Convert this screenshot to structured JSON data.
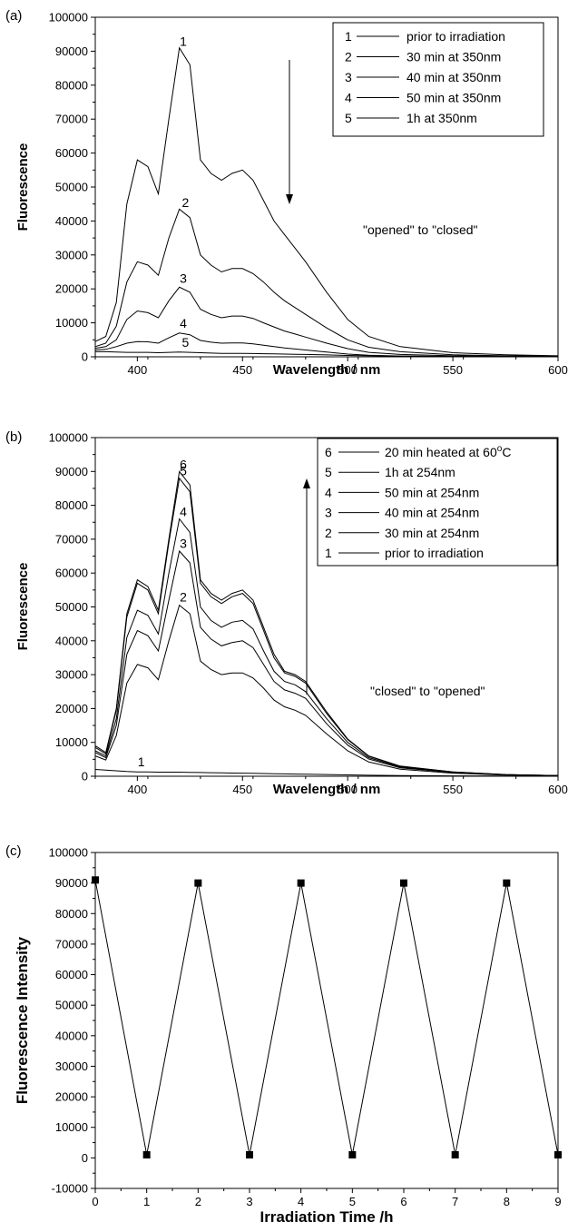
{
  "chart_data": [
    {
      "panel_label": "(a)",
      "type": "line",
      "xlabel": "Wavelength / nm",
      "ylabel": "Fluorescence",
      "xlim": [
        380,
        600
      ],
      "ylim": [
        0,
        100000
      ],
      "xticks": [
        400,
        450,
        500,
        550,
        600
      ],
      "yticks": [
        0,
        10000,
        20000,
        30000,
        40000,
        50000,
        60000,
        70000,
        80000,
        90000,
        100000
      ],
      "legend": {
        "position": "top-right"
      },
      "annotation": "\"opened\" to \"closed\"",
      "arrow": "down",
      "x": [
        380,
        385,
        390,
        395,
        400,
        405,
        410,
        415,
        420,
        425,
        430,
        435,
        440,
        445,
        450,
        455,
        460,
        465,
        470,
        475,
        480,
        490,
        500,
        510,
        525,
        550,
        575,
        600
      ],
      "series": [
        {
          "name": "prior to irradiation",
          "curve_label": "1",
          "label_x": 421,
          "values": [
            4500,
            6000,
            16000,
            45000,
            58000,
            56000,
            48000,
            70000,
            91000,
            86000,
            58000,
            54000,
            52000,
            54000,
            55000,
            52000,
            46000,
            40000,
            36000,
            32000,
            28000,
            19000,
            11000,
            6000,
            3000,
            1200,
            600,
            300
          ]
        },
        {
          "name": "30 min at 350nm",
          "curve_label": "2",
          "label_x": 422,
          "values": [
            3000,
            4000,
            9000,
            22000,
            28000,
            27000,
            24000,
            35000,
            43500,
            41000,
            30000,
            27000,
            25000,
            26000,
            26000,
            24500,
            22000,
            19000,
            16500,
            14500,
            12500,
            8500,
            5000,
            2800,
            1500,
            600,
            300,
            150
          ]
        },
        {
          "name": "40 min at 350nm",
          "curve_label": "3",
          "label_x": 421,
          "values": [
            2500,
            3000,
            5000,
            11000,
            13500,
            13000,
            11500,
            16500,
            20500,
            19000,
            14000,
            12500,
            11500,
            12000,
            12000,
            11300,
            10000,
            8800,
            7600,
            6700,
            5800,
            4000,
            2400,
            1300,
            700,
            300,
            150,
            80
          ]
        },
        {
          "name": "50 min at 350nm",
          "curve_label": "4",
          "label_x": 421,
          "values": [
            2000,
            2200,
            3000,
            4000,
            4500,
            4400,
            4000,
            5600,
            7000,
            6500,
            4800,
            4300,
            4000,
            4100,
            4100,
            3800,
            3400,
            3000,
            2600,
            2300,
            2000,
            1400,
            800,
            450,
            250,
            100,
            50,
            25
          ]
        },
        {
          "name": "1h at 350nm",
          "curve_label": "5",
          "label_x": 422,
          "values": [
            1500,
            1500,
            1400,
            1300,
            1300,
            1300,
            1200,
            1300,
            1400,
            1300,
            1200,
            1100,
            1000,
            1000,
            1000,
            950,
            900,
            850,
            800,
            750,
            700,
            550,
            400,
            300,
            200,
            100,
            50,
            25
          ]
        }
      ]
    },
    {
      "panel_label": "(b)",
      "type": "line",
      "xlabel": "Wavelength / nm",
      "ylabel": "Fluorescence",
      "xlim": [
        380,
        600
      ],
      "ylim": [
        0,
        100000
      ],
      "xticks": [
        400,
        450,
        500,
        550,
        600
      ],
      "yticks": [
        0,
        10000,
        20000,
        30000,
        40000,
        50000,
        60000,
        70000,
        80000,
        90000,
        100000
      ],
      "legend": {
        "position": "top-right"
      },
      "annotation": "\"closed\" to \"opened\"",
      "arrow": "up",
      "x": [
        380,
        385,
        390,
        395,
        400,
        405,
        410,
        415,
        420,
        425,
        430,
        435,
        440,
        445,
        450,
        455,
        460,
        465,
        470,
        475,
        480,
        490,
        500,
        510,
        525,
        550,
        575,
        600
      ],
      "series": [
        {
          "name": "20 min heated at 60°C",
          "legend_name": "20 min heated at 60",
          "legend_sup": "o",
          "legend_suffix": "C",
          "curve_label": "6",
          "label_x": 421,
          "values": [
            9000,
            7000,
            20000,
            48000,
            58000,
            56000,
            49000,
            70000,
            90000,
            86000,
            58000,
            54000,
            52000,
            54000,
            55000,
            52000,
            44000,
            36000,
            31000,
            30000,
            28000,
            19000,
            11000,
            6000,
            3000,
            1300,
            500,
            200
          ]
        },
        {
          "name": "1h at 254nm",
          "curve_label": "5",
          "label_x": 421,
          "values": [
            8500,
            6600,
            19500,
            47000,
            57000,
            55000,
            48000,
            69000,
            88000,
            84000,
            57000,
            53000,
            51000,
            53000,
            54000,
            51000,
            43000,
            35000,
            30500,
            29500,
            27500,
            18500,
            10800,
            5900,
            2900,
            1250,
            480,
            190
          ]
        },
        {
          "name": "50 min at 254nm",
          "curve_label": "4",
          "label_x": 421,
          "values": [
            7500,
            6000,
            17000,
            41000,
            49000,
            47500,
            42000,
            60000,
            76000,
            72000,
            50000,
            46000,
            44000,
            45500,
            46000,
            43500,
            37000,
            31000,
            28000,
            27000,
            25000,
            17000,
            10000,
            5500,
            2700,
            1150,
            450,
            180
          ]
        },
        {
          "name": "40 min at 254nm",
          "curve_label": "3",
          "label_x": 421,
          "values": [
            7000,
            5500,
            15000,
            36000,
            43000,
            41500,
            37000,
            52000,
            66500,
            63000,
            44000,
            40500,
            38500,
            39500,
            40000,
            38000,
            33000,
            28000,
            25500,
            24500,
            23000,
            15500,
            9200,
            5100,
            2500,
            1100,
            420,
            170
          ]
        },
        {
          "name": "30 min at 254nm",
          "curve_label": "2",
          "label_x": 421,
          "values": [
            6000,
            4800,
            12000,
            27500,
            33000,
            32000,
            28500,
            40000,
            50500,
            48000,
            34000,
            31500,
            30000,
            30500,
            30500,
            29000,
            26000,
            22500,
            20500,
            19500,
            18000,
            12500,
            7500,
            4200,
            2100,
            900,
            350,
            150
          ]
        },
        {
          "name": "prior to irradiation",
          "curve_label": "1",
          "label_x": 401,
          "values": [
            2000,
            1800,
            1600,
            1400,
            1300,
            1250,
            1200,
            1200,
            1200,
            1150,
            1100,
            1050,
            1000,
            950,
            900,
            850,
            800,
            750,
            700,
            650,
            600,
            500,
            400,
            300,
            200,
            100,
            50,
            20
          ]
        }
      ]
    },
    {
      "panel_label": "(c)",
      "type": "line",
      "xlabel": "Irradiation Time /h",
      "ylabel": "Fluorescence Intensity",
      "xlim": [
        0,
        9
      ],
      "ylim": [
        -10000,
        100000
      ],
      "xticks": [
        0,
        1,
        2,
        3,
        4,
        5,
        6,
        7,
        8,
        9
      ],
      "yticks": [
        -10000,
        0,
        10000,
        20000,
        30000,
        40000,
        50000,
        60000,
        70000,
        80000,
        90000,
        100000
      ],
      "markers": "square",
      "series": [
        {
          "x": [
            0,
            1,
            2,
            3,
            4,
            5,
            6,
            7,
            8,
            9
          ],
          "values": [
            91000,
            1000,
            90000,
            1000,
            90000,
            1000,
            90000,
            1000,
            90000,
            1000
          ]
        }
      ]
    }
  ]
}
